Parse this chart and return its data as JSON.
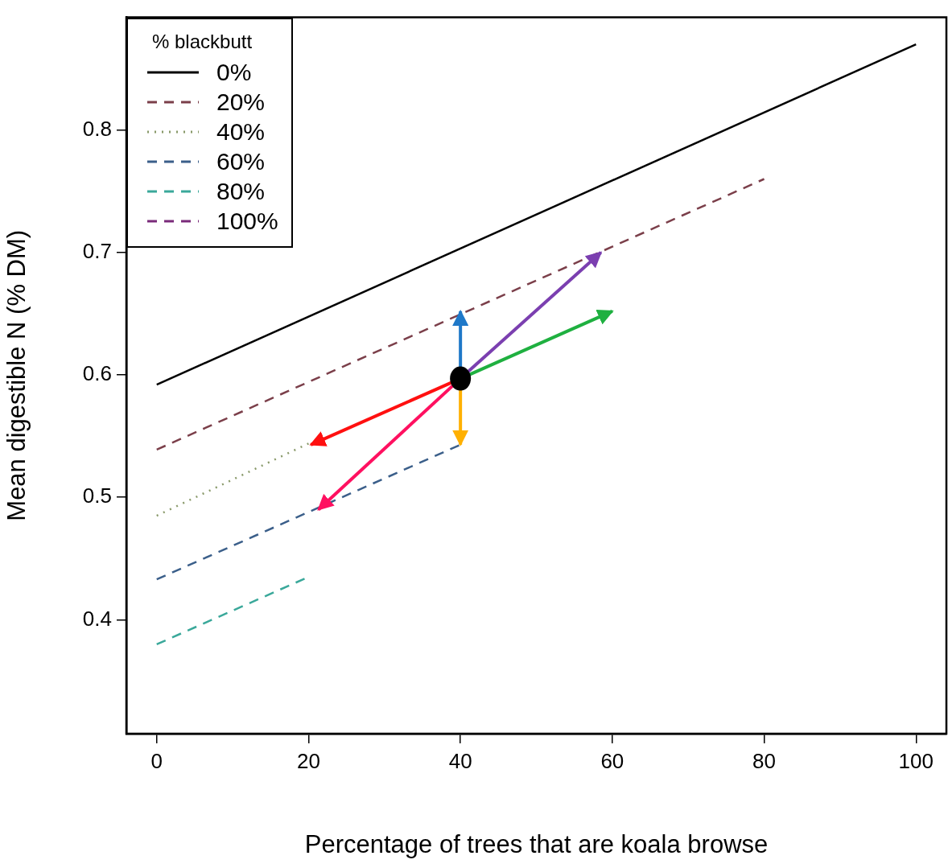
{
  "chart_data": {
    "type": "line",
    "xlabel": "Percentage of trees that are koala browse",
    "ylabel": "Mean digestible N (% DM)",
    "legend_title": "% blackbutt",
    "legend": "top left",
    "grid": false,
    "marker": "none",
    "xlim": [
      -4,
      104
    ],
    "ylim": [
      0.307,
      0.892
    ],
    "xticks": [
      0,
      20,
      40,
      60,
      80,
      100
    ],
    "yticks": [
      0.4,
      0.5,
      0.6,
      0.7,
      0.8
    ],
    "series": [
      {
        "name": "0%",
        "color": "#000000",
        "line_style": "solid",
        "x": [
          0,
          100
        ],
        "values": [
          0.592,
          0.87
        ]
      },
      {
        "name": "20%",
        "color": "#7b3f4a",
        "line_style": "dashed",
        "x": [
          0,
          80
        ],
        "values": [
          0.539,
          0.76
        ]
      },
      {
        "name": "40%",
        "color": "#8a9a6b",
        "line_style": "dotted",
        "x": [
          0,
          20
        ],
        "values": [
          0.485,
          0.544
        ]
      },
      {
        "name": "60%",
        "color": "#3b5f8a",
        "line_style": "dashed",
        "x": [
          0,
          40
        ],
        "values": [
          0.433,
          0.543
        ]
      },
      {
        "name": "80%",
        "color": "#3aa89a",
        "line_style": "dashed",
        "x": [
          0,
          20
        ],
        "values": [
          0.38,
          0.435
        ]
      },
      {
        "name": "100%",
        "color": "#7a2a7a",
        "line_style": "dashed"
      }
    ]
  }
}
